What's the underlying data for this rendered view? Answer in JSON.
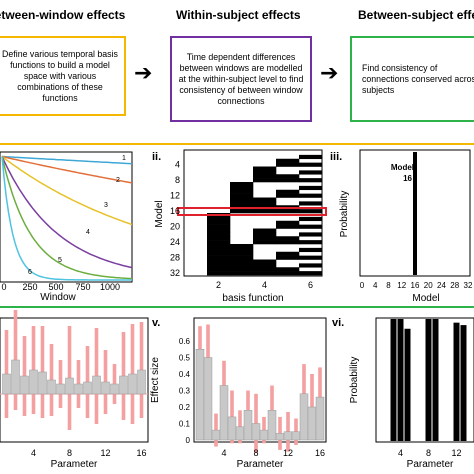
{
  "headers": {
    "between_window": "Between-window effects",
    "within_subject": "Within-subject effects",
    "between_subject": "Between-subject effects"
  },
  "boxes": {
    "between_window": "Define various temporal basis functions to build a model space with various combinations of these functions",
    "within_subject": "Time dependent differences between windows are modelled at the within-subject level to find consistency of between window connections",
    "between_subject": "Find consistency of connections conserved across subjects"
  },
  "colors": {
    "between_window": "#f5b800",
    "within_subject": "#7030a0",
    "between_subject": "#2eb34a",
    "highlight": "#e0202a",
    "bar_error": "#f4a0a0",
    "bar_fill": "#c8c8c8"
  },
  "panel_labels": {
    "ii": "ii.",
    "iii": "iii.",
    "v": "v.",
    "vi": "vi."
  },
  "panel_i": {
    "xlabel": "Window",
    "xticks": [
      "0",
      "250",
      "500",
      "750",
      "1000"
    ],
    "curve_labels": [
      "1",
      "2",
      "3",
      "4",
      "5",
      "6"
    ],
    "curve_colors": [
      "#3fa7d6",
      "#e2703a",
      "#e6c229",
      "#7a3fa0",
      "#6cae3e",
      "#4fc3e0"
    ]
  },
  "panel_ii": {
    "ylabel": "Model",
    "xlabel": "basis function",
    "yticks": [
      "4",
      "8",
      "12",
      "16",
      "20",
      "24",
      "28",
      "32"
    ],
    "xticks": [
      "2",
      "4",
      "6"
    ]
  },
  "panel_iii": {
    "ylabel": "Probability",
    "xlabel": "Model",
    "annotation_line1": "Model",
    "annotation_line2": "16",
    "xticks": [
      "0",
      "4",
      "8",
      "12",
      "16",
      "20",
      "24",
      "28",
      "32"
    ]
  },
  "panel_iv": {
    "xlabel": "Parameter",
    "xticks": [
      "4",
      "8",
      "12",
      "16"
    ]
  },
  "panel_v": {
    "ylabel": "Effect size",
    "xlabel": "Parameter",
    "yticks": [
      "0.6",
      "0.5",
      "0.4",
      "0.3",
      "0.2",
      "0.1",
      "0"
    ],
    "xticks": [
      "4",
      "8",
      "12",
      "16"
    ]
  },
  "panel_vi": {
    "ylabel": "Probability",
    "xlabel": "Parameter",
    "xticks": [
      "4",
      "8",
      "12"
    ]
  },
  "chart_data": [
    {
      "type": "line",
      "panel": "i",
      "xlabel": "Window",
      "series": [
        {
          "name": "1",
          "x": [
            0,
            1100
          ],
          "y": [
            0.98,
            0.93
          ]
        },
        {
          "name": "2",
          "x": [
            0,
            1100
          ],
          "y": [
            0.98,
            0.78
          ]
        },
        {
          "name": "3",
          "x": [
            0,
            1100
          ],
          "y": [
            0.98,
            0.5
          ]
        },
        {
          "name": "4",
          "x": [
            0,
            1100
          ],
          "y": [
            0.98,
            0.16
          ]
        },
        {
          "name": "5",
          "x": [
            0,
            1100
          ],
          "y": [
            0.98,
            0.03
          ]
        },
        {
          "name": "6",
          "x": [
            0,
            1100
          ],
          "y": [
            0.98,
            0.0
          ]
        }
      ]
    },
    {
      "type": "heatmap",
      "panel": "ii",
      "xlabel": "basis function",
      "ylabel": "Model",
      "rows": 32,
      "columns": 6,
      "highlight_model": 16
    },
    {
      "type": "bar",
      "panel": "iii",
      "xlabel": "Model",
      "ylabel": "Probability",
      "categories": [
        16
      ],
      "values": [
        1.0
      ],
      "ylim": [
        0,
        1
      ]
    },
    {
      "type": "bar",
      "panel": "iv",
      "xlabel": "Parameter",
      "categories": [
        1,
        2,
        3,
        4,
        5,
        6,
        7,
        8,
        9,
        10,
        11,
        12,
        13,
        14,
        15,
        16
      ],
      "values": [
        0.1,
        0.17,
        0.09,
        0.12,
        0.11,
        0.07,
        0.05,
        0.08,
        0.05,
        0.06,
        0.09,
        0.06,
        0.05,
        0.09,
        0.1,
        0.12
      ],
      "error": [
        0.22,
        0.25,
        0.2,
        0.22,
        0.23,
        0.18,
        0.12,
        0.26,
        0.12,
        0.18,
        0.24,
        0.16,
        0.1,
        0.22,
        0.25,
        0.24
      ]
    },
    {
      "type": "bar",
      "panel": "v",
      "xlabel": "Parameter",
      "ylabel": "Effect size",
      "ylim": [
        0,
        0.7
      ],
      "categories": [
        1,
        2,
        3,
        4,
        5,
        6,
        7,
        8,
        9,
        10,
        11,
        12,
        13,
        14,
        15,
        16
      ],
      "values": [
        0.55,
        0.5,
        0.06,
        0.33,
        0.14,
        0.08,
        0.18,
        0.1,
        0.06,
        0.18,
        0.04,
        0.05,
        0.05,
        0.28,
        0.2,
        0.26
      ],
      "error": [
        0.14,
        0.2,
        0.1,
        0.15,
        0.16,
        0.1,
        0.12,
        0.18,
        0.08,
        0.15,
        0.1,
        0.12,
        0.08,
        0.18,
        0.2,
        0.18
      ]
    },
    {
      "type": "bar",
      "panel": "vi",
      "xlabel": "Parameter",
      "ylabel": "Probability",
      "ylim": [
        0,
        1
      ],
      "categories": [
        3,
        4,
        5,
        8,
        9,
        12,
        13
      ],
      "values": [
        1.0,
        1.0,
        0.92,
        1.0,
        1.0,
        0.97,
        0.95
      ]
    }
  ]
}
